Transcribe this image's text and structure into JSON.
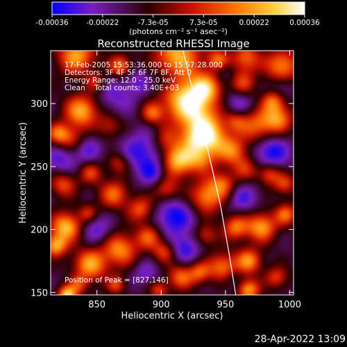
{
  "chart_data": {
    "type": "heatmap",
    "title": "Reconstructed RHESSI Image",
    "xlabel": "Heliocentric X (arcsec)",
    "ylabel": "Heliocentric Y (arcsec)",
    "xlim": [
      814,
      1003
    ],
    "ylim": [
      148,
      342
    ],
    "xticks": [
      850,
      900,
      950,
      1000
    ],
    "yticks": [
      150,
      200,
      250,
      300
    ],
    "colorbar": {
      "range": [
        -0.00036,
        0.00036
      ],
      "ticks": [
        "-0.00036",
        "-0.00022",
        "-7.3e-05",
        "7.3e-05",
        "0.00022",
        "0.00036"
      ],
      "unit_label": "(photons cm⁻² s⁻¹ asec⁻²)",
      "colormap": [
        "#0000ff",
        "#7a1fbf",
        "#2a0000",
        "#c81000",
        "#ff7000",
        "#ffd040",
        "#ffffff"
      ]
    },
    "annotations": {
      "time": "17-Feb-2005 15:53:36.000 to 15:57:28.000",
      "detectors": "Detectors: 3F 4F 5F 6F 7F 8F, Att 0",
      "energy": "Energy Range: 12.0 - 25.0 keV",
      "method": "Clean    Total counts: 3.40E+03",
      "peak": "Position of Peak = [827,146]"
    },
    "limb_curve": {
      "x": [
        917,
        927,
        937,
        946,
        953,
        958
      ],
      "y": [
        342,
        300,
        260,
        220,
        180,
        148
      ]
    },
    "grid": false,
    "blobs": [
      {
        "x": 913,
        "y": 338,
        "v": 0.0003,
        "r": 12
      },
      {
        "x": 934,
        "y": 312,
        "v": 0.00028,
        "r": 9
      },
      {
        "x": 918,
        "y": 302,
        "v": 0.00034,
        "r": 12
      },
      {
        "x": 932,
        "y": 285,
        "v": 0.00025,
        "r": 11
      },
      {
        "x": 940,
        "y": 271,
        "v": 0.00022,
        "r": 9
      },
      {
        "x": 925,
        "y": 272,
        "v": 0.00015,
        "r": 8
      },
      {
        "x": 913,
        "y": 255,
        "v": 0.00033,
        "r": 9
      },
      {
        "x": 931,
        "y": 256,
        "v": 0.00018,
        "r": 8
      },
      {
        "x": 903,
        "y": 272,
        "v": 0.0001,
        "r": 7
      },
      {
        "x": 956,
        "y": 262,
        "v": 0.0002,
        "r": 8
      },
      {
        "x": 936,
        "y": 226,
        "v": 0.00025,
        "r": 9
      },
      {
        "x": 948,
        "y": 236,
        "v": 0.00018,
        "r": 7
      },
      {
        "x": 966,
        "y": 248,
        "v": 0.00012,
        "r": 7
      },
      {
        "x": 975,
        "y": 282,
        "v": 0.0002,
        "r": 10
      },
      {
        "x": 991,
        "y": 288,
        "v": 0.00022,
        "r": 8
      },
      {
        "x": 987,
        "y": 302,
        "v": 0.00018,
        "r": 6
      },
      {
        "x": 958,
        "y": 286,
        "v": 0.00012,
        "r": 6
      },
      {
        "x": 963,
        "y": 316,
        "v": 0.00015,
        "r": 7
      },
      {
        "x": 966,
        "y": 336,
        "v": 0.0002,
        "r": 8
      },
      {
        "x": 994,
        "y": 330,
        "v": 0.00025,
        "r": 9
      },
      {
        "x": 944,
        "y": 335,
        "v": 0.0002,
        "r": 6
      },
      {
        "x": 834,
        "y": 338,
        "v": 0.00028,
        "r": 10
      },
      {
        "x": 849,
        "y": 317,
        "v": 0.0001,
        "r": 5
      },
      {
        "x": 838,
        "y": 294,
        "v": 0.0003,
        "r": 9
      },
      {
        "x": 860,
        "y": 282,
        "v": 0.0001,
        "r": 7
      },
      {
        "x": 830,
        "y": 272,
        "v": 0.00012,
        "r": 7
      },
      {
        "x": 820,
        "y": 276,
        "v": 0.0002,
        "r": 6
      },
      {
        "x": 868,
        "y": 330,
        "v": 0.00022,
        "r": 6
      },
      {
        "x": 893,
        "y": 292,
        "v": 0.00018,
        "r": 6
      },
      {
        "x": 845,
        "y": 245,
        "v": 0.00015,
        "r": 6
      },
      {
        "x": 867,
        "y": 252,
        "v": 0.00012,
        "r": 6
      },
      {
        "x": 863,
        "y": 228,
        "v": 0.0002,
        "r": 8
      },
      {
        "x": 884,
        "y": 216,
        "v": 0.00018,
        "r": 7
      },
      {
        "x": 904,
        "y": 232,
        "v": 0.00015,
        "r": 7
      },
      {
        "x": 824,
        "y": 236,
        "v": 0.00018,
        "r": 7
      },
      {
        "x": 826,
        "y": 202,
        "v": 0.00032,
        "r": 8
      },
      {
        "x": 818,
        "y": 187,
        "v": 0.00028,
        "r": 6
      },
      {
        "x": 843,
        "y": 213,
        "v": 0.00012,
        "r": 5
      },
      {
        "x": 845,
        "y": 172,
        "v": 0.00028,
        "r": 9
      },
      {
        "x": 868,
        "y": 184,
        "v": 0.00025,
        "r": 9
      },
      {
        "x": 890,
        "y": 194,
        "v": 0.00018,
        "r": 7
      },
      {
        "x": 902,
        "y": 182,
        "v": 0.00015,
        "r": 6
      },
      {
        "x": 915,
        "y": 162,
        "v": 0.0002,
        "r": 7
      },
      {
        "x": 930,
        "y": 166,
        "v": 0.00018,
        "r": 6
      },
      {
        "x": 948,
        "y": 170,
        "v": 0.00022,
        "r": 8
      },
      {
        "x": 935,
        "y": 195,
        "v": 0.00012,
        "r": 6
      },
      {
        "x": 958,
        "y": 202,
        "v": 0.00022,
        "r": 7
      },
      {
        "x": 978,
        "y": 202,
        "v": 0.00028,
        "r": 8
      },
      {
        "x": 997,
        "y": 212,
        "v": 0.0002,
        "r": 6
      },
      {
        "x": 996,
        "y": 236,
        "v": 0.00015,
        "r": 6
      },
      {
        "x": 984,
        "y": 244,
        "v": 0.00018,
        "r": 6
      },
      {
        "x": 968,
        "y": 175,
        "v": 0.00025,
        "r": 7
      },
      {
        "x": 990,
        "y": 162,
        "v": 0.00015,
        "r": 6
      },
      {
        "x": 968,
        "y": 152,
        "v": 0.00028,
        "r": 6
      },
      {
        "x": 898,
        "y": 152,
        "v": 0.00015,
        "r": 5
      },
      {
        "x": 865,
        "y": 156,
        "v": 0.00015,
        "r": 5
      },
      {
        "x": 827,
        "y": 148,
        "v": 0.00036,
        "r": 5
      },
      {
        "x": 836,
        "y": 156,
        "v": 0.00012,
        "r": 5
      },
      {
        "x": 865,
        "y": 305,
        "v": -0.0002,
        "r": 10
      },
      {
        "x": 885,
        "y": 262,
        "v": -0.00025,
        "r": 12
      },
      {
        "x": 894,
        "y": 245,
        "v": -0.00022,
        "r": 8
      },
      {
        "x": 822,
        "y": 255,
        "v": -0.00022,
        "r": 9
      },
      {
        "x": 843,
        "y": 264,
        "v": -0.0002,
        "r": 8
      },
      {
        "x": 910,
        "y": 210,
        "v": -0.0003,
        "r": 10
      },
      {
        "x": 919,
        "y": 185,
        "v": -0.00025,
        "r": 8
      },
      {
        "x": 963,
        "y": 225,
        "v": -0.00022,
        "r": 9
      },
      {
        "x": 985,
        "y": 262,
        "v": -0.0003,
        "r": 10
      },
      {
        "x": 960,
        "y": 300,
        "v": -0.00022,
        "r": 8
      },
      {
        "x": 994,
        "y": 313,
        "v": -0.00018,
        "r": 6
      },
      {
        "x": 955,
        "y": 160,
        "v": -0.00015,
        "r": 6
      },
      {
        "x": 850,
        "y": 200,
        "v": -0.00022,
        "r": 8
      },
      {
        "x": 888,
        "y": 165,
        "v": -0.0002,
        "r": 7
      },
      {
        "x": 882,
        "y": 317,
        "v": -0.0002,
        "r": 7
      },
      {
        "x": 950,
        "y": 325,
        "v": -0.00015,
        "r": 6
      },
      {
        "x": 905,
        "y": 318,
        "v": -0.00015,
        "r": 6
      }
    ]
  },
  "footer": {
    "timestamp": "28-Apr-2022 13:09"
  }
}
